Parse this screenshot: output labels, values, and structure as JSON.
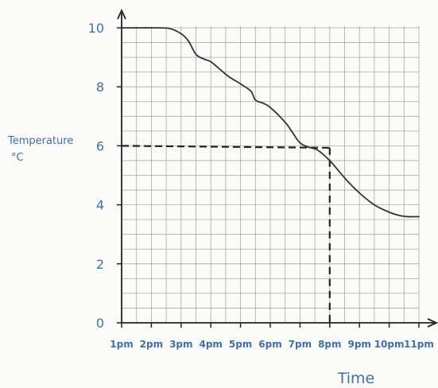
{
  "chart_data": {
    "type": "line",
    "xlabel": "Time",
    "ylabel": "Temperature",
    "ylabel_unit": "°C",
    "categories": [
      "1pm",
      "2pm",
      "3pm",
      "4pm",
      "5pm",
      "6pm",
      "7pm",
      "8pm",
      "9pm",
      "10pm",
      "11pm"
    ],
    "y_ticks": [
      "0",
      "2",
      "4",
      "6",
      "8",
      "10"
    ],
    "ylim": [
      0,
      10
    ],
    "xlim_hours": [
      1,
      11
    ],
    "grid": true,
    "series": [
      {
        "x": [
          1,
          1.5,
          2,
          2.6,
          3,
          3.25,
          3.5,
          3.75,
          4,
          4.3,
          4.6,
          5,
          5.35,
          5.5,
          5.75,
          6,
          6.5,
          6.75,
          7,
          7.3,
          7.6,
          8,
          8.3,
          8.6,
          9,
          9.5,
          10,
          10.3,
          10.6,
          11
        ],
        "y": [
          10,
          10,
          10,
          9.98,
          9.8,
          9.55,
          9.1,
          8.95,
          8.85,
          8.6,
          8.35,
          8.1,
          7.85,
          7.55,
          7.45,
          7.3,
          6.8,
          6.45,
          6.1,
          5.95,
          5.85,
          5.5,
          5.15,
          4.8,
          4.4,
          4.0,
          3.75,
          3.65,
          3.6,
          3.6
        ]
      }
    ],
    "annotation": {
      "x": 8,
      "y": 6,
      "style": "dashed"
    },
    "colors": {
      "axis": "#222222",
      "grid": "#a9a9a9",
      "curve": "#333333",
      "text": "#3f6fae",
      "background": "#fbfbf9"
    }
  }
}
